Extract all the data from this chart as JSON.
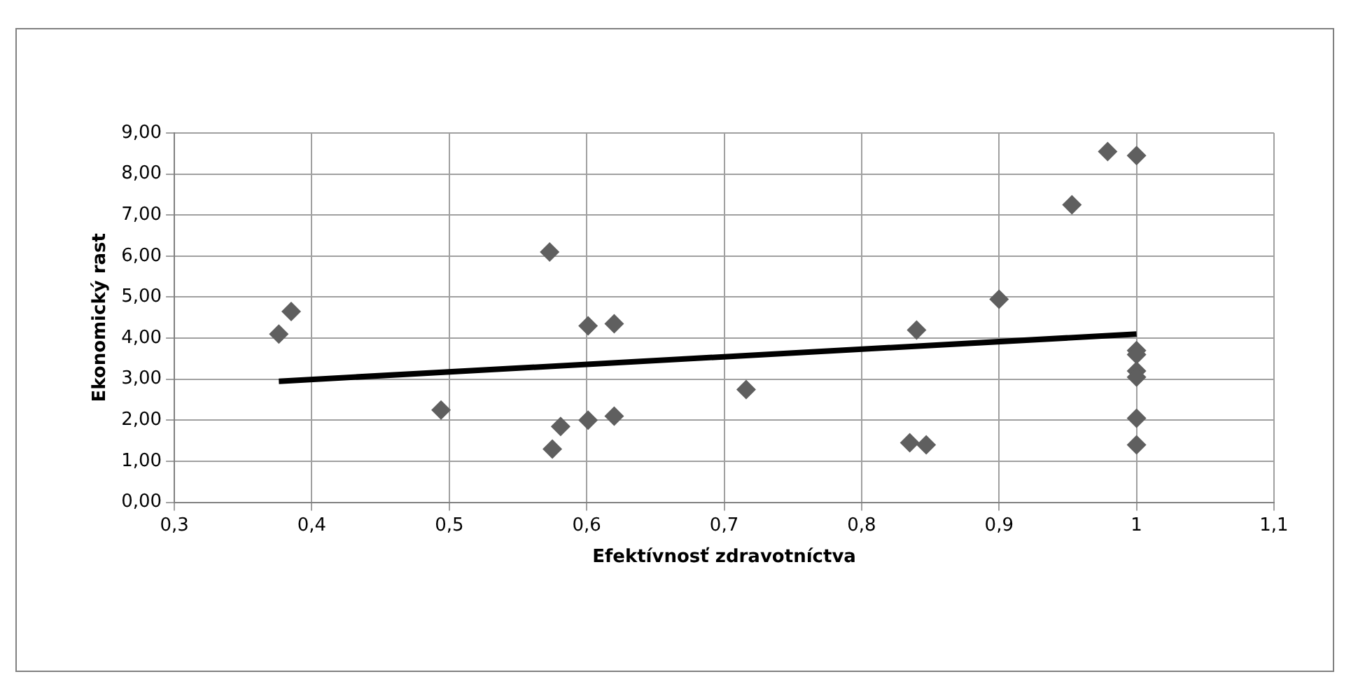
{
  "chart_data": {
    "type": "scatter",
    "xlabel": "Efektívnosť zdravotníctva",
    "ylabel": "Ekonomický rast",
    "legend": false,
    "grid": true,
    "marker": "diamond",
    "xlim": [
      0.3,
      1.1
    ],
    "xticks": [
      {
        "value": 0.3,
        "label": "0,3"
      },
      {
        "value": 0.4,
        "label": "0,4"
      },
      {
        "value": 0.5,
        "label": "0,5"
      },
      {
        "value": 0.6,
        "label": "0,6"
      },
      {
        "value": 0.7,
        "label": "0,7"
      },
      {
        "value": 0.8,
        "label": "0,8"
      },
      {
        "value": 0.9,
        "label": "0,9"
      },
      1,
      {
        "value": 1.1,
        "label": "1,1"
      }
    ],
    "ylim": [
      0,
      9
    ],
    "yticks": [
      {
        "value": 0,
        "label": "0,00"
      },
      {
        "value": 1,
        "label": "1,00"
      },
      {
        "value": 2,
        "label": "2,00"
      },
      {
        "value": 3,
        "label": "3,00"
      },
      {
        "value": 4,
        "label": "4,00"
      },
      {
        "value": 5,
        "label": "5,00"
      },
      {
        "value": 6,
        "label": "6,00"
      },
      {
        "value": 7,
        "label": "7,00"
      },
      {
        "value": 8,
        "label": "8,00"
      },
      {
        "value": 9,
        "label": "9,00"
      }
    ],
    "series": [
      {
        "color": "#5f5f5f",
        "x": [
          0.376,
          0.385,
          0.494,
          0.573,
          0.575,
          0.581,
          0.601,
          0.601,
          0.62,
          0.62,
          0.716,
          0.835,
          0.847,
          0.84,
          0.9,
          0.953,
          0.979,
          1.0,
          1.0,
          1.0,
          1.0,
          1.0,
          1.0,
          1.0
        ],
        "values": [
          4.1,
          4.65,
          2.25,
          6.1,
          1.3,
          1.85,
          4.3,
          2.0,
          4.35,
          2.1,
          2.75,
          1.45,
          1.4,
          4.2,
          4.95,
          7.25,
          8.55,
          8.45,
          3.7,
          3.6,
          3.2,
          3.05,
          2.05,
          1.4
        ]
      },
      {
        "type": "line",
        "color": "#000000",
        "x": [
          0.376,
          1.0
        ],
        "values": [
          2.95,
          4.1
        ],
        "marker": "none",
        "line_style": "solid"
      }
    ]
  }
}
